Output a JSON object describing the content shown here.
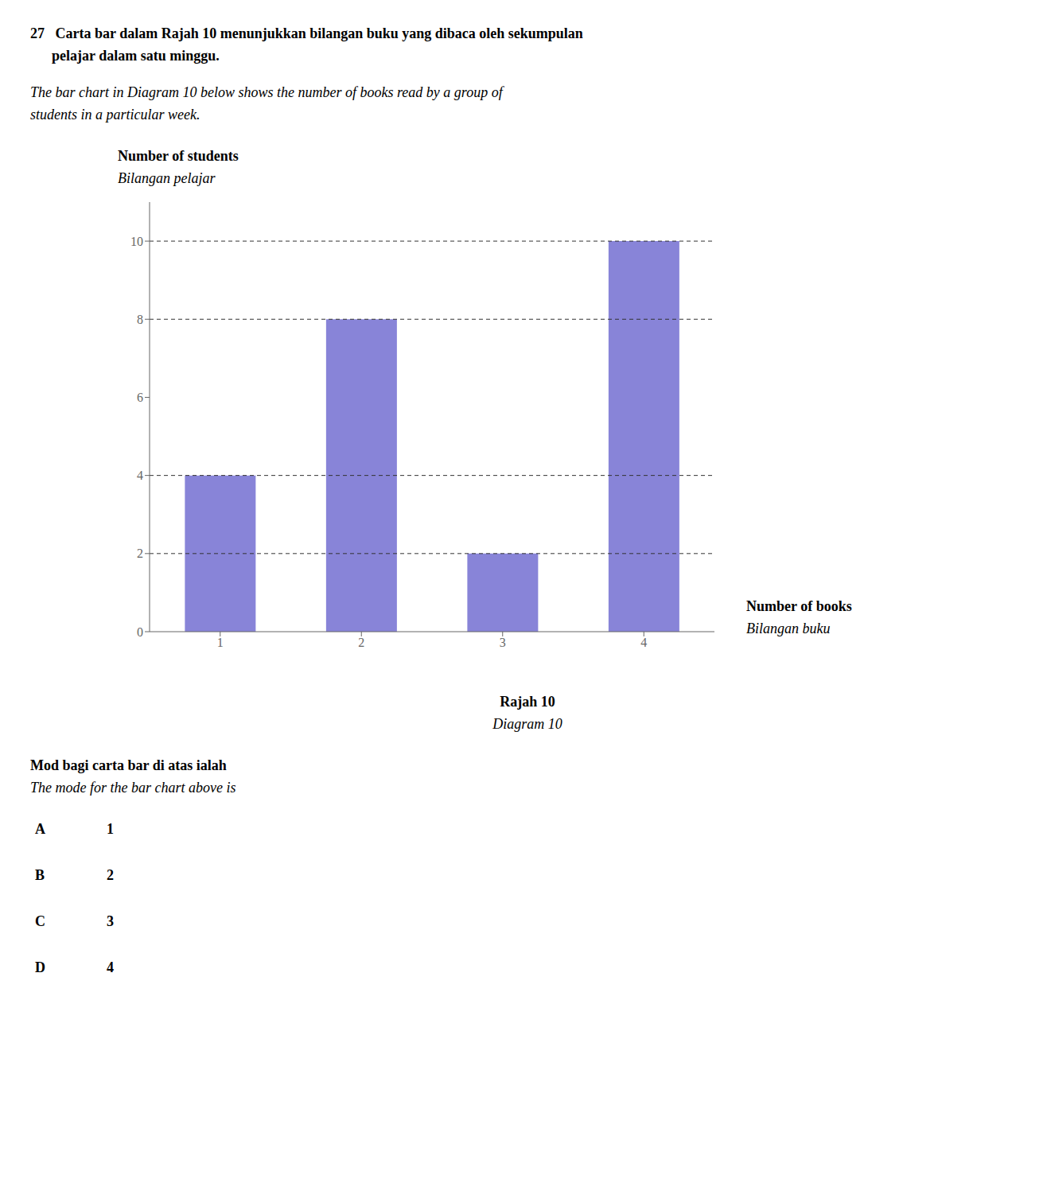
{
  "chart_data": {
    "type": "bar",
    "title": [
      "27   Carta bar dalam Rajah 10 menunjukkan bilangan buku yang dibaca oleh sekumpulan",
      "      pelajar dalam satu minggu."
    ],
    "subtitle": [
      "The bar chart in Diagram 10 below shows the number of books read by a group of",
      "students in a particular week."
    ],
    "y_label": [
      "Number of students",
      "Bilangan pelajar"
    ],
    "x_label": [
      "Number of books",
      "Bilangan buku"
    ],
    "categories": [
      "1",
      "2",
      "3",
      "4"
    ],
    "values": [
      4,
      8,
      2,
      10
    ],
    "ylim": [
      0,
      11
    ],
    "yticks": [
      0,
      2,
      4,
      6,
      8,
      10
    ],
    "reference_lines": [
      2,
      4,
      8,
      10
    ],
    "annotations": {
      "caption": [
        "Rajah 10",
        "Diagram 10"
      ],
      "question": [
        "Mod bagi carta bar di atas ialah",
        "The mode for the bar chart above is"
      ],
      "options": [
        [
          "A",
          "1"
        ],
        [
          "B",
          "2"
        ],
        [
          "C",
          "3"
        ],
        [
          "D",
          "4"
        ]
      ]
    }
  }
}
